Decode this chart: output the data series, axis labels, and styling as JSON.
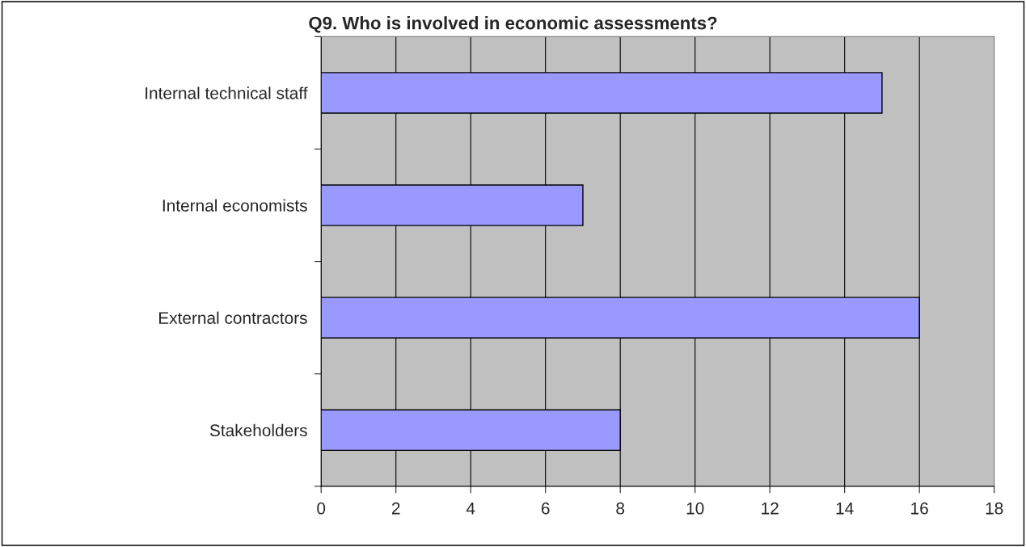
{
  "chart_data": {
    "type": "bar",
    "orientation": "horizontal",
    "title": "Q9. Who is involved in economic assessments?",
    "categories": [
      "Internal technical staff",
      "Internal economists",
      "External contractors",
      "Stakeholders"
    ],
    "values": [
      15,
      7,
      16,
      8
    ],
    "color": "#9999ff",
    "xlim": [
      0,
      18
    ],
    "xticks": [
      0,
      2,
      4,
      6,
      8,
      10,
      12,
      14,
      16,
      18
    ],
    "grid": "x",
    "legend": false
  }
}
